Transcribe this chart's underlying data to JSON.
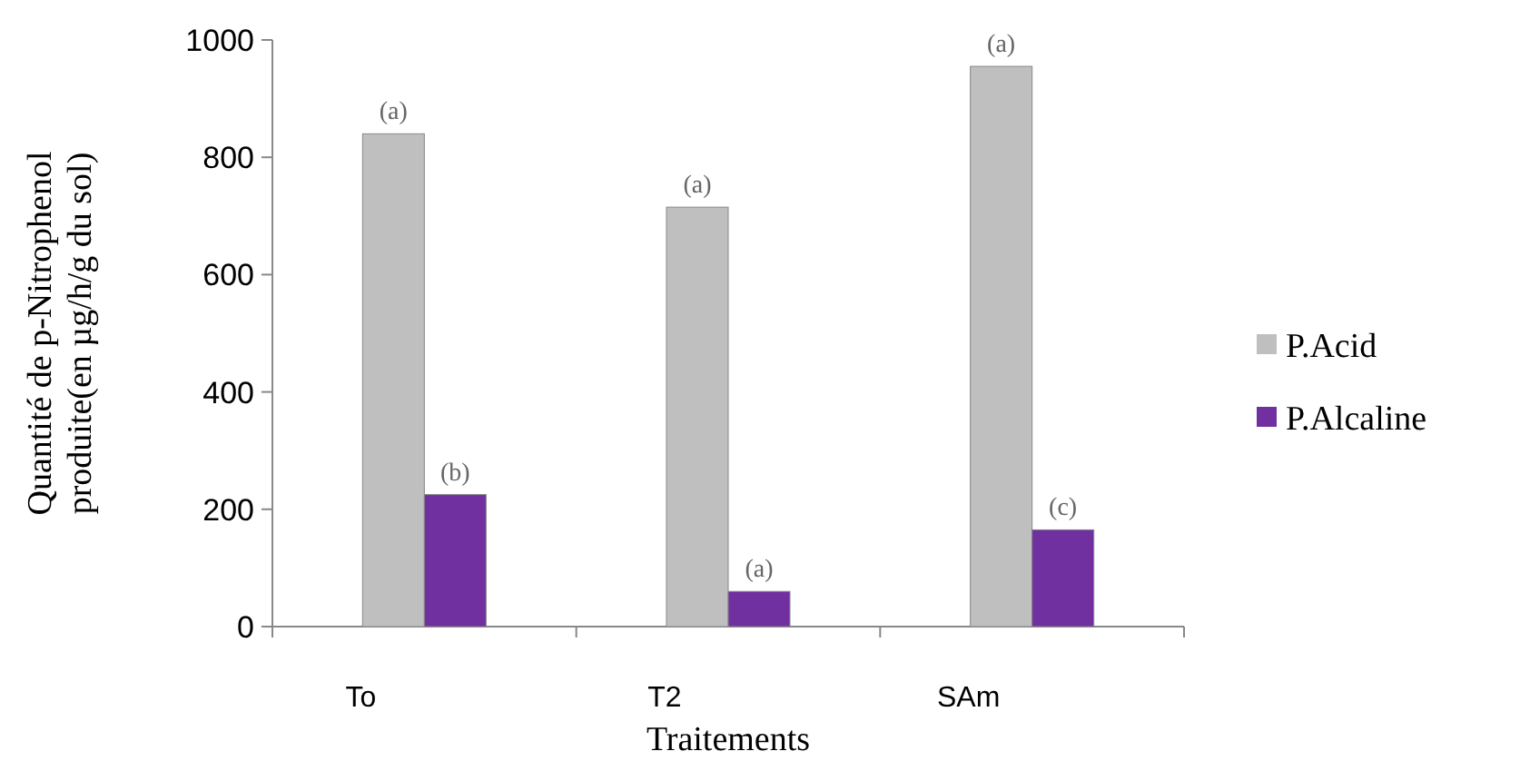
{
  "chart_data": {
    "type": "bar",
    "xlabel": "Traitements",
    "ylabel": "Quantité de p-Nitrophenol produite(en µg/h/g du sol)",
    "categories": [
      "To",
      "T2",
      "SAm"
    ],
    "series": [
      {
        "name": "P.Acid",
        "color": "#bfbfbf",
        "values": [
          840,
          715,
          955
        ]
      },
      {
        "name": "P.Alcaline",
        "color": "#7030a0",
        "values": [
          225,
          60,
          165
        ]
      }
    ],
    "ylim": [
      0,
      1000
    ],
    "yticks": [
      0,
      200,
      400,
      600,
      800,
      1000
    ],
    "grid": false,
    "legend": "right",
    "annotations": [
      "(a)",
      "(b)",
      "(a)",
      "(a)",
      "(a)",
      "(c)"
    ]
  }
}
